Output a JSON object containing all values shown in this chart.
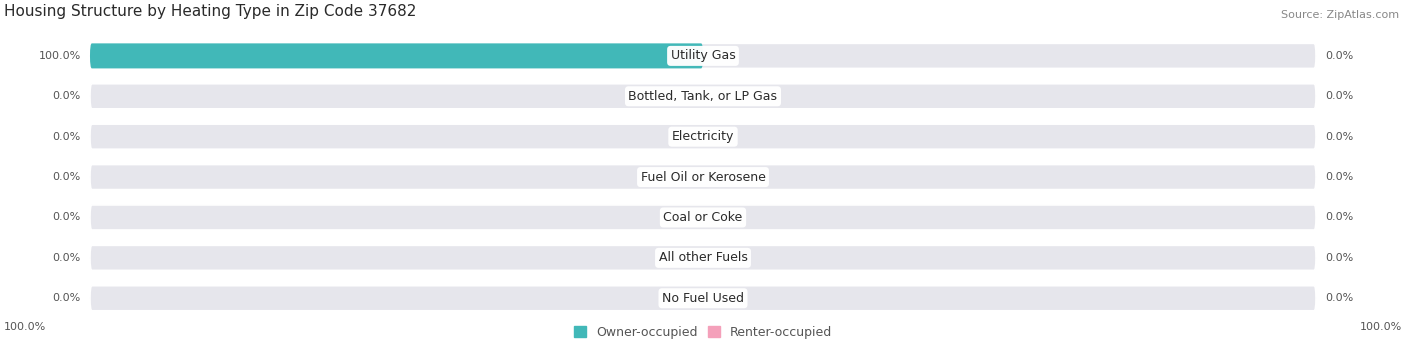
{
  "title": "Housing Structure by Heating Type in Zip Code 37682",
  "source": "Source: ZipAtlas.com",
  "categories": [
    "Utility Gas",
    "Bottled, Tank, or LP Gas",
    "Electricity",
    "Fuel Oil or Kerosene",
    "Coal or Coke",
    "All other Fuels",
    "No Fuel Used"
  ],
  "owner_values": [
    100.0,
    0.0,
    0.0,
    0.0,
    0.0,
    0.0,
    0.0
  ],
  "renter_values": [
    0.0,
    0.0,
    0.0,
    0.0,
    0.0,
    0.0,
    0.0
  ],
  "owner_color": "#41b8b8",
  "renter_color": "#f4a0ba",
  "bar_bg_color": "#e6e6ec",
  "owner_label": "Owner-occupied",
  "renter_label": "Renter-occupied",
  "title_fontsize": 11,
  "pct_fontsize": 8,
  "cat_fontsize": 9,
  "legend_fontsize": 9,
  "source_fontsize": 8,
  "bg_color": "#ffffff",
  "bar_height": 0.62,
  "row_sep_color": "#ffffff",
  "left_pct_label": "100.0%",
  "right_pct_label": "100.0%"
}
